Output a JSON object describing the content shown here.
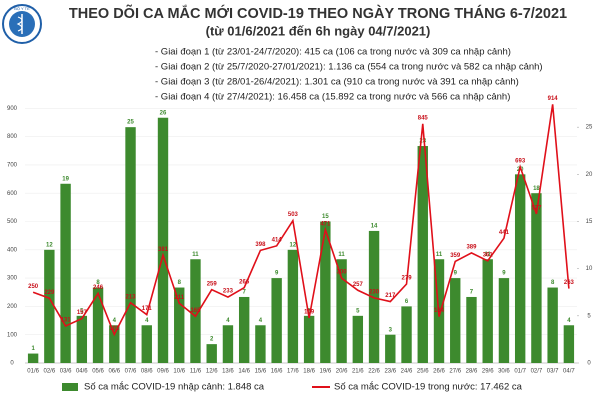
{
  "logo_text": "BỘ Y TẾ",
  "chart_data": {
    "type": "combo",
    "title": "THEO DÕI CA MẮC MỚI COVID-19 THEO NGÀY TRONG THÁNG 6-7/2021",
    "subtitle": "(từ 01/6/2021 đến 6h ngày 04/7/2021)",
    "annotations": [
      "- Giai đoạn 1 (từ 23/01-24/7/2020): 415 ca (106 ca trong nước và 309 ca nhập cảnh)",
      "- Giai đoạn 2 (từ 25/7/2020-27/01/2021): 1.136 ca (554 ca trong nước và 582 ca nhập cảnh)",
      "- Giai đoạn 3 (từ 28/01-26/4/2021): 1.301 ca (910 ca trong nước và 391 ca nhập cảnh)",
      "- Giai đoạn 4 (từ 27/4/2021): 16.458 ca (15.892 ca trong nước và 566 ca nhập cảnh)"
    ],
    "categories": [
      "01/6",
      "02/6",
      "03/6",
      "04/6",
      "05/6",
      "06/6",
      "07/6",
      "08/6",
      "09/6",
      "10/6",
      "11/6",
      "12/6",
      "13/6",
      "14/6",
      "15/6",
      "16/6",
      "17/6",
      "18/6",
      "19/6",
      "20/6",
      "21/6",
      "22/6",
      "23/6",
      "24/6",
      "25/6",
      "26/6",
      "27/6",
      "28/6",
      "29/6",
      "30/6",
      "01/7",
      "02/7",
      "03/7",
      "04/7"
    ],
    "series": [
      {
        "name": "Số ca mắc COVID-19 nhập cảnh: 1.848 ca",
        "type": "bar",
        "axis": "y2",
        "color": "#3d8a2e",
        "values": [
          1,
          12,
          19,
          5,
          8,
          4,
          25,
          4,
          26,
          8,
          11,
          2,
          4,
          7,
          4,
          9,
          12,
          5,
          15,
          11,
          5,
          14,
          3,
          6,
          23,
          11,
          9,
          7,
          11,
          9,
          20,
          18,
          8,
          4
        ]
      },
      {
        "name": "Số ca mắc COVID-19 trong nước: 17.462 ca",
        "type": "line",
        "color": "#e0101a",
        "values": [
          250,
          229,
          131,
          157,
          246,
          101,
          213,
          171,
          381,
          211,
          165,
          259,
          233,
          266,
          398,
          414,
          503,
          159,
          471,
          300,
          257,
          230,
          217,
          279,
          845,
          164,
          359,
          389,
          361,
          441,
          693,
          527,
          914,
          263
        ]
      }
    ],
    "ylim": [
      0,
      1000
    ],
    "yticks": [
      0,
      100,
      200,
      300,
      400,
      500,
      600,
      700,
      800,
      900
    ],
    "y2lim": [
      0,
      30
    ],
    "y2ticks": [
      0,
      5,
      10,
      15,
      20,
      25
    ],
    "grid": true
  }
}
